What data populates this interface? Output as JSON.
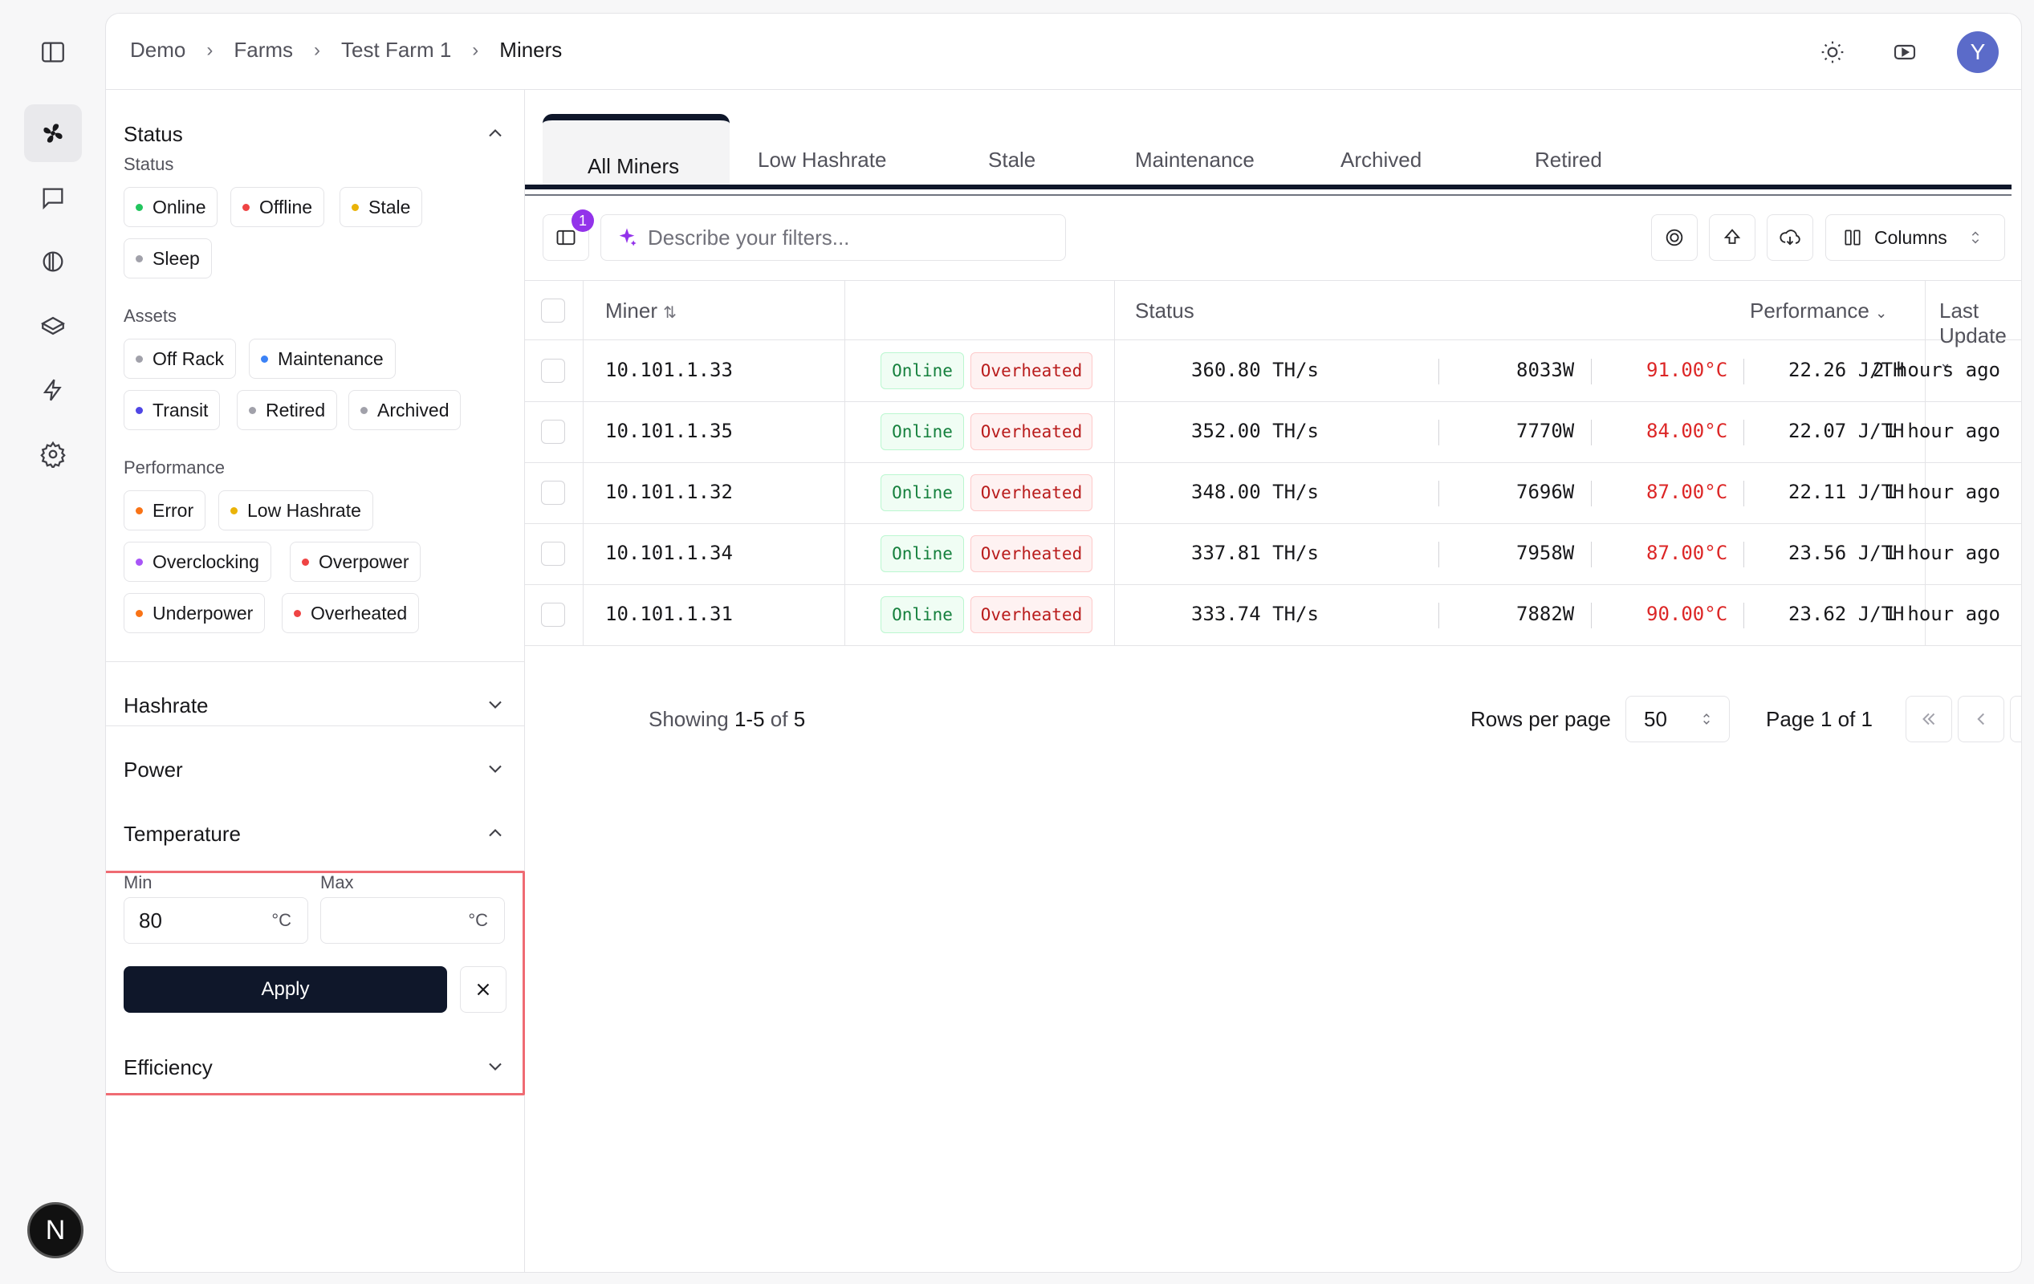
{
  "breadcrumb": [
    "Demo",
    "Farms",
    "Test Farm 1",
    "Miners"
  ],
  "header": {
    "avatar_initial": "Y"
  },
  "filters": {
    "status_section": {
      "title": "Status",
      "groups": [
        {
          "label": "Status",
          "chips": [
            {
              "label": "Online",
              "color": "#22c55e"
            },
            {
              "label": "Offline",
              "color": "#ef4444"
            },
            {
              "label": "Stale",
              "color": "#eab308"
            },
            {
              "label": "Sleep",
              "color": "#a1a1aa"
            }
          ]
        },
        {
          "label": "Assets",
          "chips": [
            {
              "label": "Off Rack",
              "color": "#a1a1aa"
            },
            {
              "label": "Maintenance",
              "color": "#3b82f6"
            },
            {
              "label": "Transit",
              "color": "#4f46e5"
            },
            {
              "label": "Retired",
              "color": "#a1a1aa"
            },
            {
              "label": "Archived",
              "color": "#a1a1aa"
            }
          ]
        },
        {
          "label": "Performance",
          "chips": [
            {
              "label": "Error",
              "color": "#f97316"
            },
            {
              "label": "Low Hashrate",
              "color": "#eab308"
            },
            {
              "label": "Overclocking",
              "color": "#a855f7"
            },
            {
              "label": "Overpower",
              "color": "#ef4444"
            },
            {
              "label": "Underpower",
              "color": "#f97316"
            },
            {
              "label": "Overheated",
              "color": "#ef4444"
            }
          ]
        }
      ]
    },
    "hashrate_title": "Hashrate",
    "power_title": "Power",
    "temperature": {
      "title": "Temperature",
      "min_label": "Min",
      "max_label": "Max",
      "min_value": "80",
      "max_value": "",
      "unit": "°C",
      "apply_label": "Apply"
    },
    "efficiency_title": "Efficiency"
  },
  "tabs": [
    "All Miners",
    "Low Hashrate",
    "Stale",
    "Maintenance",
    "Archived",
    "Retired"
  ],
  "toolbar": {
    "filter_badge": "1",
    "search_placeholder": "Describe your filters...",
    "columns_label": "Columns"
  },
  "table": {
    "headers": {
      "miner": "Miner",
      "status": "Status",
      "performance": "Performance",
      "last_update": "Last Update"
    },
    "rows": [
      {
        "miner": "10.101.1.33",
        "status": "Online",
        "alert": "Overheated",
        "hashrate": "360.80 TH/s",
        "power": "8033W",
        "temp": "91.00°C",
        "efficiency": "22.26 J/TH",
        "updated": "2 hours ago"
      },
      {
        "miner": "10.101.1.35",
        "status": "Online",
        "alert": "Overheated",
        "hashrate": "352.00 TH/s",
        "power": "7770W",
        "temp": "84.00°C",
        "efficiency": "22.07 J/TH",
        "updated": "1 hour ago"
      },
      {
        "miner": "10.101.1.32",
        "status": "Online",
        "alert": "Overheated",
        "hashrate": "348.00 TH/s",
        "power": "7696W",
        "temp": "87.00°C",
        "efficiency": "22.11 J/TH",
        "updated": "1 hour ago"
      },
      {
        "miner": "10.101.1.34",
        "status": "Online",
        "alert": "Overheated",
        "hashrate": "337.81 TH/s",
        "power": "7958W",
        "temp": "87.00°C",
        "efficiency": "23.56 J/TH",
        "updated": "1 hour ago"
      },
      {
        "miner": "10.101.1.31",
        "status": "Online",
        "alert": "Overheated",
        "hashrate": "333.74 TH/s",
        "power": "7882W",
        "temp": "90.00°C",
        "efficiency": "23.62 J/TH",
        "updated": "1 hour ago"
      }
    ]
  },
  "pagination": {
    "showing_prefix": "Showing",
    "range": "1-5",
    "of_word": "of",
    "total": "5",
    "rows_per_page_label": "Rows per page",
    "rows_per_page": "50",
    "page_label": "Page 1 of 1"
  },
  "colors": {
    "accent": "#0f172a",
    "online": "#15803d",
    "alert": "#dc2626",
    "highlight": "#ef6b73"
  }
}
